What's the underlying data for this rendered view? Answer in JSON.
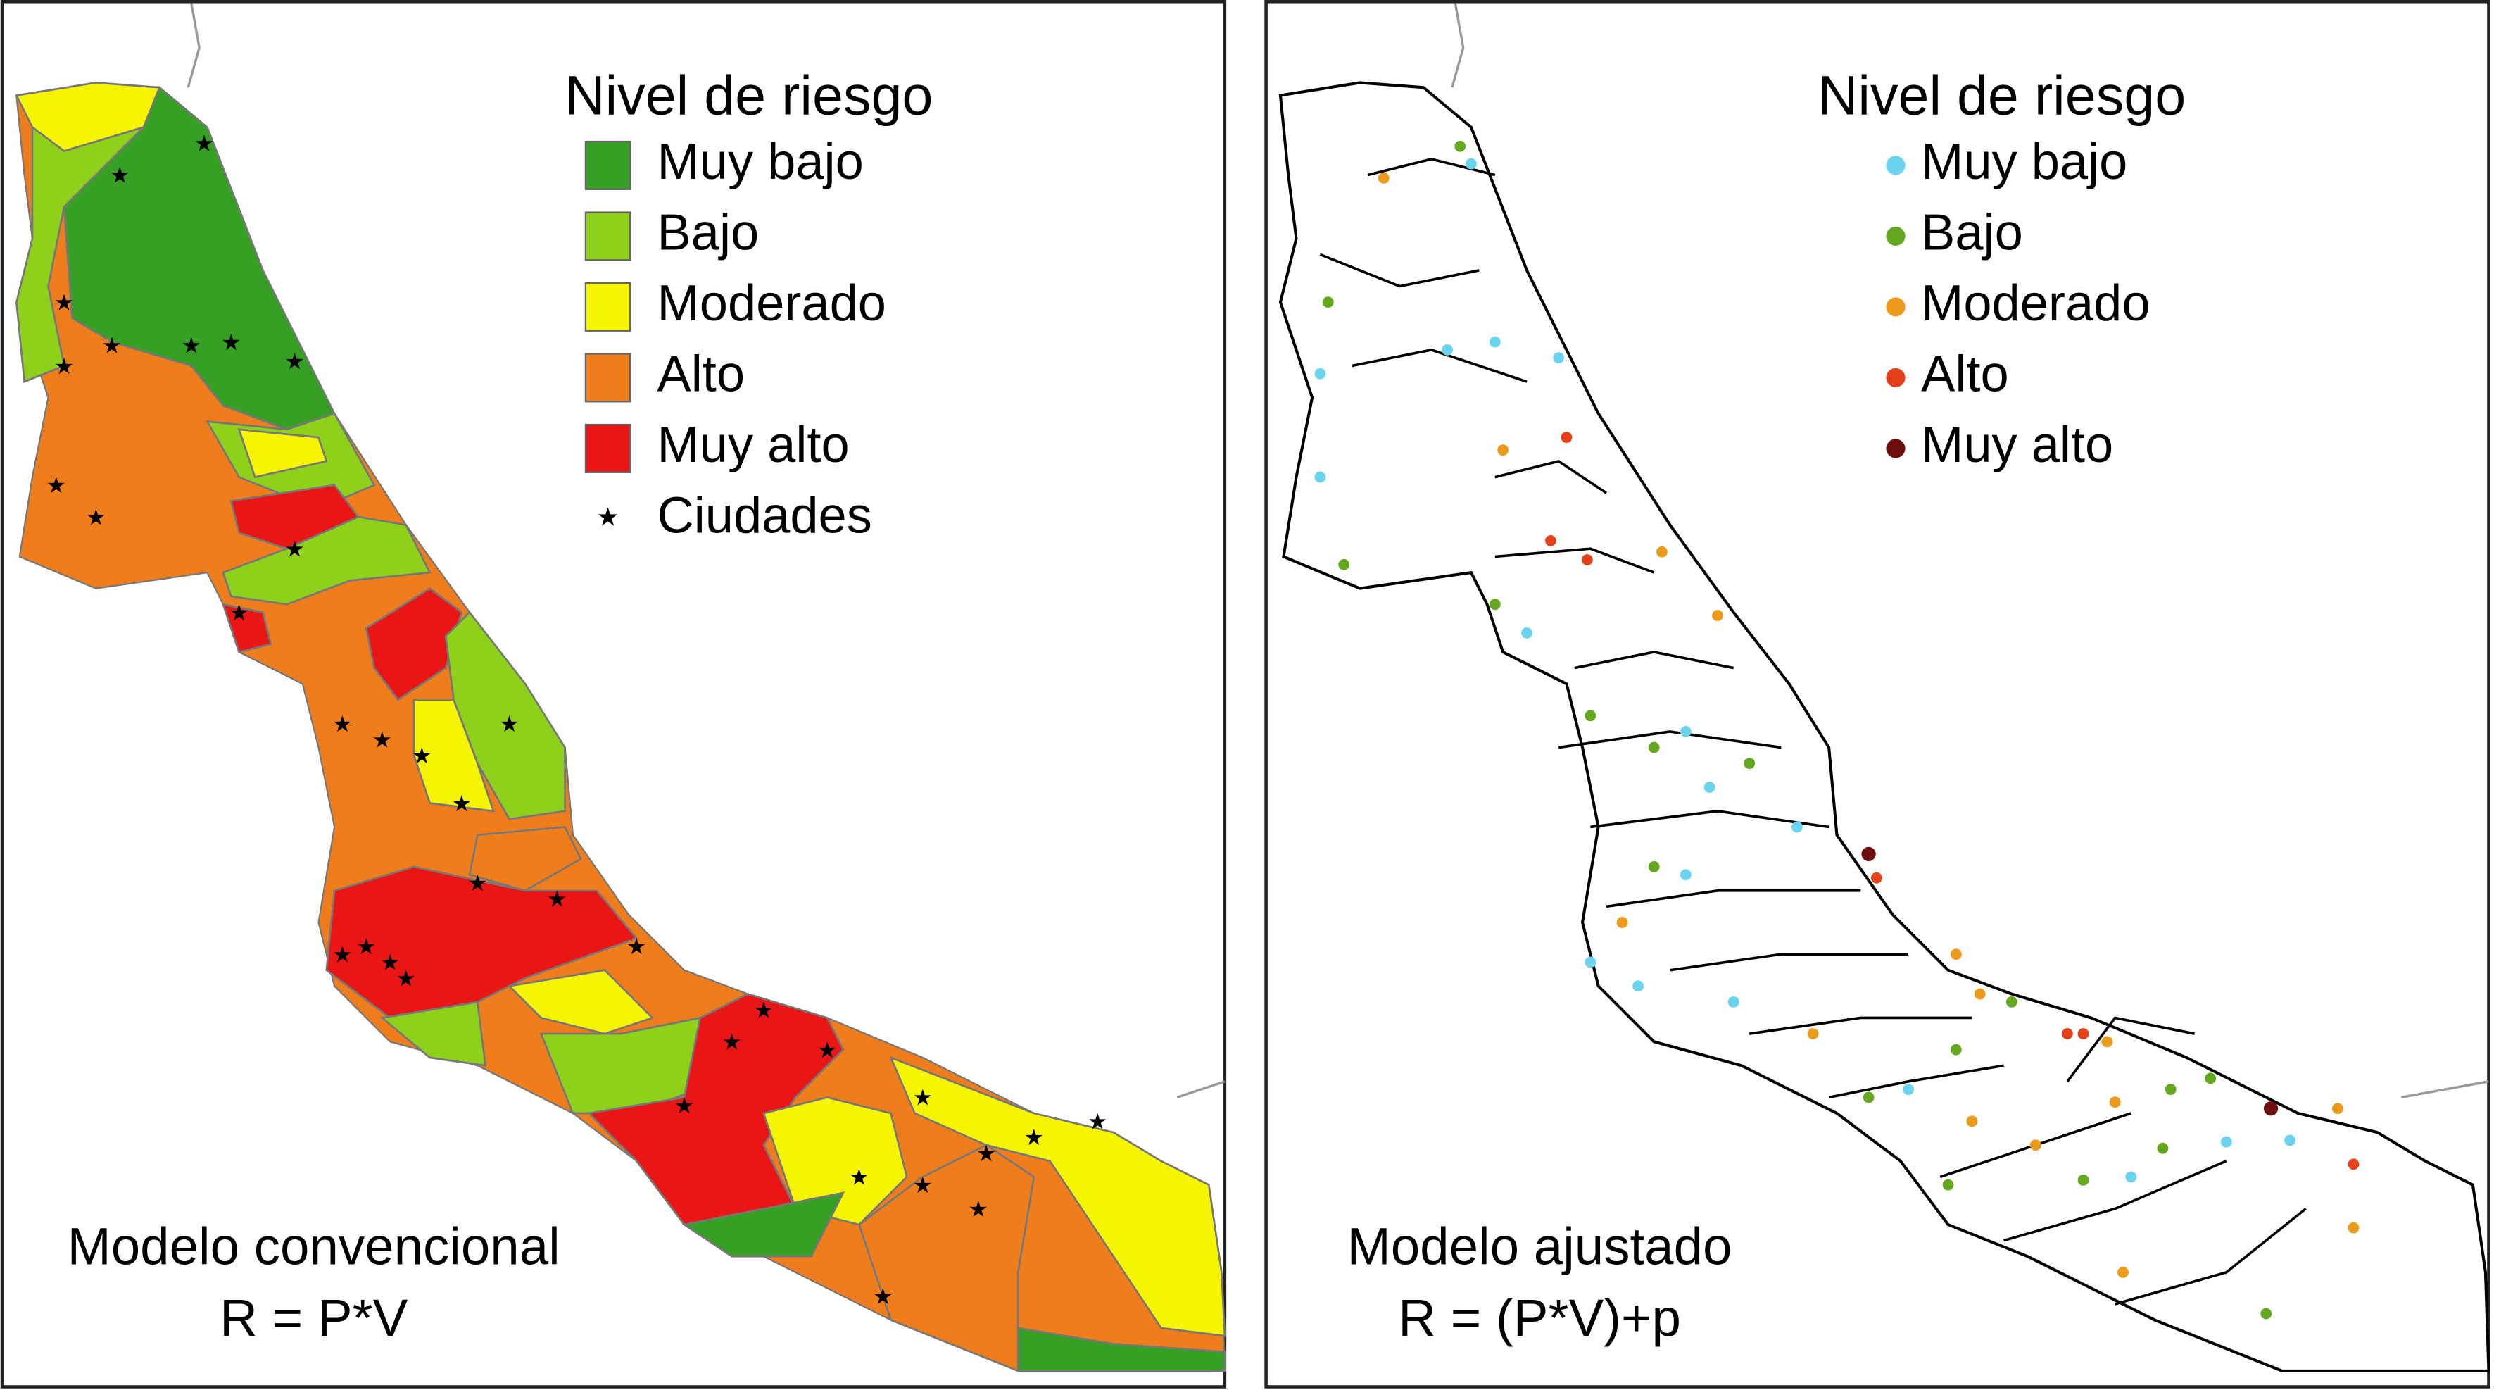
{
  "panels": [
    {
      "legend": {
        "title": "Nivel de riesgo",
        "items": [
          {
            "label": "Muy bajo",
            "color": "#35a023",
            "symbol": "square"
          },
          {
            "label": "Bajo",
            "color": "#8fd11a",
            "symbol": "square"
          },
          {
            "label": "Moderado",
            "color": "#f5f500",
            "symbol": "square"
          },
          {
            "label": "Alto",
            "color": "#f07d1c",
            "symbol": "square"
          },
          {
            "label": "Muy alto",
            "color": "#ea1515",
            "symbol": "square"
          },
          {
            "label": "Ciudades",
            "color": "#000000",
            "symbol": "star"
          }
        ]
      },
      "model": "Modelo convencional",
      "formula": "R = P*V"
    },
    {
      "legend": {
        "title": "Nivel de riesgo",
        "items": [
          {
            "label": "Muy bajo",
            "color": "#6ad3ee",
            "symbol": "dot"
          },
          {
            "label": "Bajo",
            "color": "#63a81e",
            "symbol": "dot"
          },
          {
            "label": "Moderado",
            "color": "#ec9a1c",
            "symbol": "dot"
          },
          {
            "label": "Alto",
            "color": "#e4411a",
            "symbol": "dot"
          },
          {
            "label": "Muy alto",
            "color": "#6e0e0e",
            "symbol": "dot"
          }
        ]
      },
      "model": "Modelo ajustado",
      "formula": "R = (P*V)+p"
    }
  ]
}
